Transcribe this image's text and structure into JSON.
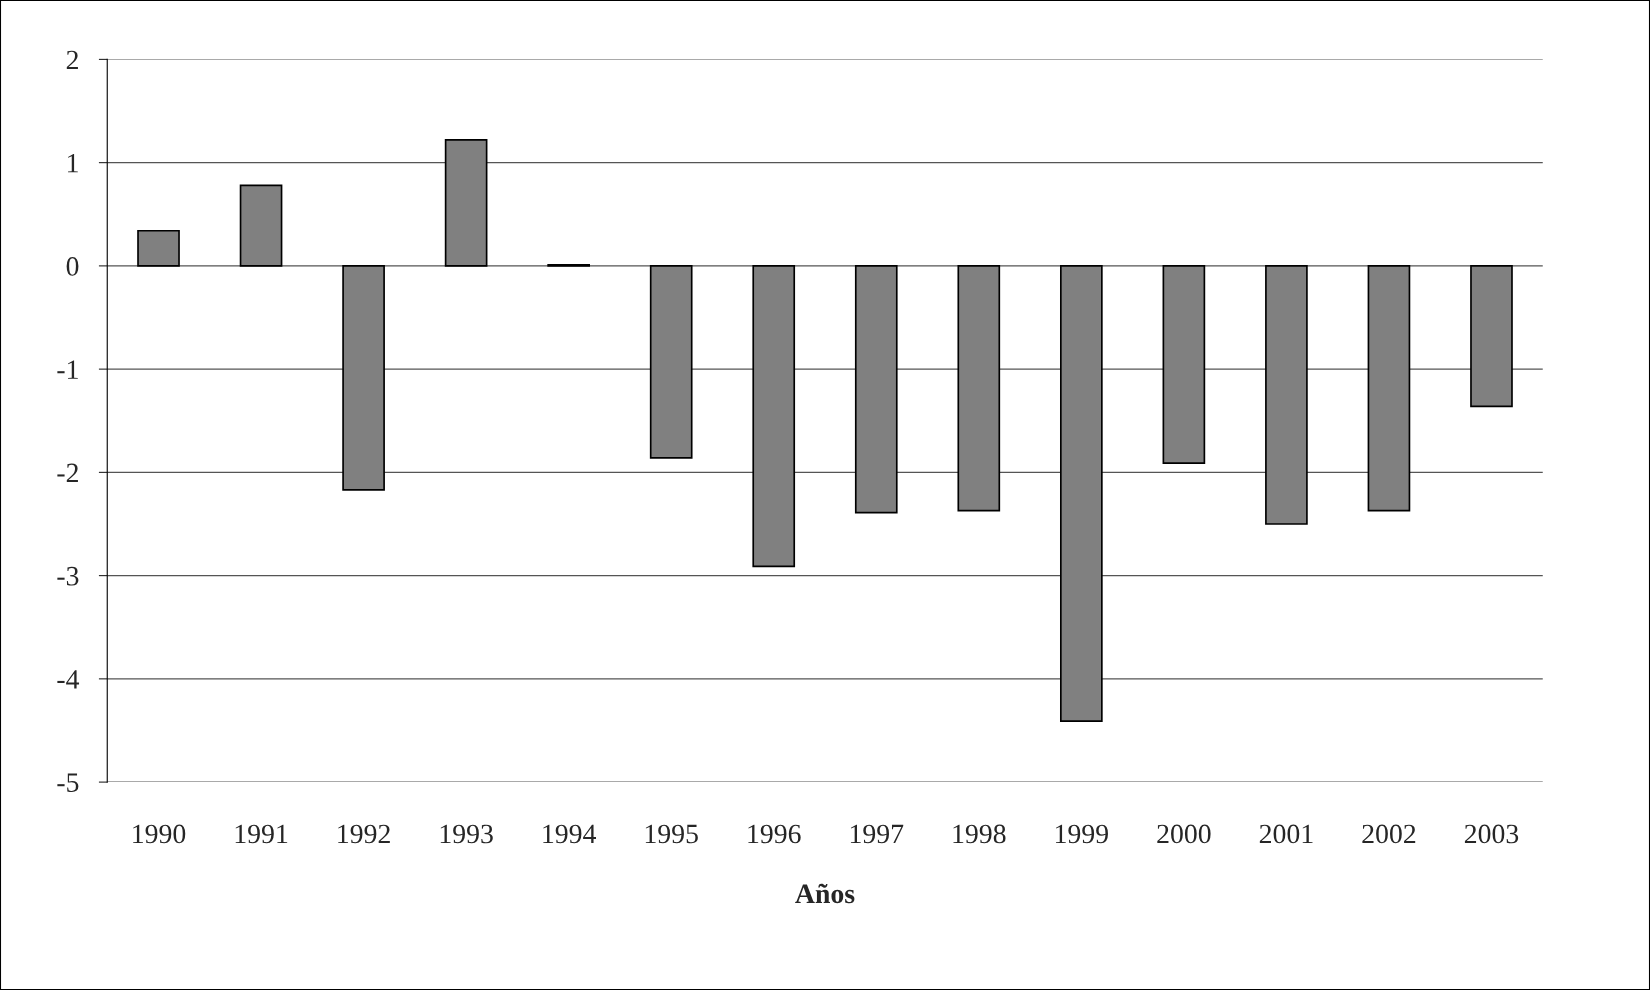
{
  "chart_data": {
    "type": "bar",
    "xlabel": "Años",
    "categories": [
      "1990",
      "1991",
      "1992",
      "1993",
      "1994",
      "1995",
      "1996",
      "1997",
      "1998",
      "1999",
      "2000",
      "2001",
      "2002",
      "2003"
    ],
    "values": [
      0.34,
      0.78,
      -2.17,
      1.22,
      0.01,
      -1.86,
      -2.91,
      -2.39,
      -2.37,
      -4.41,
      -1.91,
      -2.5,
      -2.37,
      -1.36
    ],
    "color": "#808080",
    "ylim": [
      -5,
      2
    ],
    "yticks": [
      -5,
      -4,
      -3,
      -2,
      -1,
      0,
      1,
      2
    ],
    "grid": "y"
  }
}
